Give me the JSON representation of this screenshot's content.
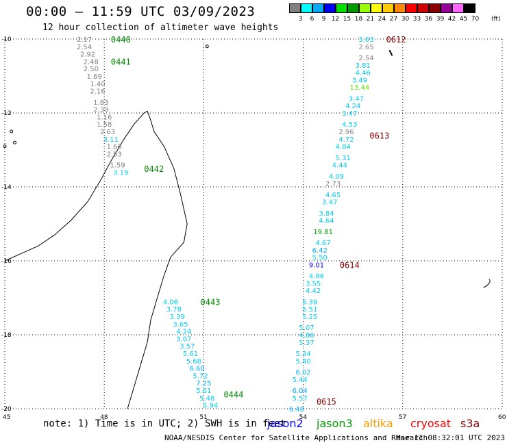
{
  "title": "00:00 – 11:59 UTC 03/09/2023",
  "subtitle": "12 hour collection of altimeter wave heights",
  "legend": {
    "unit": "(ft)",
    "bins": [
      {
        "label": "3",
        "color": "#808080"
      },
      {
        "label": "6",
        "color": "#00ffff"
      },
      {
        "label": "9",
        "color": "#00aaff"
      },
      {
        "label": "12",
        "color": "#0000ff"
      },
      {
        "label": "15",
        "color": "#00dd00"
      },
      {
        "label": "18",
        "color": "#009900"
      },
      {
        "label": "21",
        "color": "#99ff00"
      },
      {
        "label": "24",
        "color": "#ffff00"
      },
      {
        "label": "27",
        "color": "#ffcc00"
      },
      {
        "label": "30",
        "color": "#ff8800"
      },
      {
        "label": "33",
        "color": "#ff0000"
      },
      {
        "label": "36",
        "color": "#cc0000"
      },
      {
        "label": "39",
        "color": "#880000"
      },
      {
        "label": "42",
        "color": "#990099"
      },
      {
        "label": "45",
        "color": "#ff66ff"
      },
      {
        "label": "70",
        "color": "#000000"
      }
    ]
  },
  "map": {
    "lon_range": [
      45,
      60
    ],
    "lat_range": [
      -20,
      -10
    ],
    "x_ticks": [
      "45",
      "48",
      "51",
      "54",
      "57",
      "60"
    ],
    "y_ticks": [
      "-10",
      "-12",
      "-14",
      "-16",
      "-18",
      "-20"
    ],
    "grid": true
  },
  "tracks": [
    {
      "lon": 47.4,
      "lat": -10.0,
      "value": "2.17",
      "color": "#808080"
    },
    {
      "lon": 47.4,
      "lat": -10.2,
      "value": "2.54",
      "color": "#808080"
    },
    {
      "lon": 47.5,
      "lat": -10.4,
      "value": "2.92",
      "color": "#808080"
    },
    {
      "lon": 47.6,
      "lat": -10.6,
      "value": "2.48",
      "color": "#808080"
    },
    {
      "lon": 47.6,
      "lat": -10.8,
      "value": "2.50",
      "color": "#808080"
    },
    {
      "lon": 47.7,
      "lat": -11.0,
      "value": "1.69",
      "color": "#808080"
    },
    {
      "lon": 47.8,
      "lat": -11.2,
      "value": "1.40",
      "color": "#808080"
    },
    {
      "lon": 47.8,
      "lat": -11.4,
      "value": "2.16",
      "color": "#808080"
    },
    {
      "lon": 47.9,
      "lat": -11.7,
      "value": "1.83",
      "color": "#808080"
    },
    {
      "lon": 47.9,
      "lat": -11.9,
      "value": "2.39",
      "color": "#808080"
    },
    {
      "lon": 48.0,
      "lat": -12.1,
      "value": "1.16",
      "color": "#808080"
    },
    {
      "lon": 48.0,
      "lat": -12.3,
      "value": "1.58",
      "color": "#808080"
    },
    {
      "lon": 48.1,
      "lat": -12.5,
      "value": "2.63",
      "color": "#808080"
    },
    {
      "lon": 48.2,
      "lat": -12.7,
      "value": "3.11",
      "color": "#00ccee"
    },
    {
      "lon": 48.3,
      "lat": -12.9,
      "value": "1.66",
      "color": "#808080"
    },
    {
      "lon": 48.3,
      "lat": -13.1,
      "value": "2.53",
      "color": "#808080"
    },
    {
      "lon": 48.4,
      "lat": -13.4,
      "value": "1.59",
      "color": "#808080"
    },
    {
      "lon": 48.5,
      "lat": -13.6,
      "value": "3.19",
      "color": "#00ccee"
    },
    {
      "lon": 55.9,
      "lat": -10.0,
      "value": "3.03",
      "color": "#00ccee"
    },
    {
      "lon": 55.9,
      "lat": -10.2,
      "value": "2.65",
      "color": "#808080"
    },
    {
      "lon": 55.9,
      "lat": -10.5,
      "value": "2.54",
      "color": "#808080"
    },
    {
      "lon": 55.8,
      "lat": -10.7,
      "value": "3.81",
      "color": "#00ccee"
    },
    {
      "lon": 55.8,
      "lat": -10.9,
      "value": "4.46",
      "color": "#00ccee"
    },
    {
      "lon": 55.7,
      "lat": -11.1,
      "value": "3.49",
      "color": "#00ccee"
    },
    {
      "lon": 55.7,
      "lat": -11.3,
      "value": "13.44",
      "color": "#66dd00"
    },
    {
      "lon": 55.6,
      "lat": -11.6,
      "value": "3.47",
      "color": "#00ccee"
    },
    {
      "lon": 55.5,
      "lat": -11.8,
      "value": "4.24",
      "color": "#00ccee"
    },
    {
      "lon": 55.4,
      "lat": -12.0,
      "value": "3.47",
      "color": "#00ccee"
    },
    {
      "lon": 55.4,
      "lat": -12.3,
      "value": "4.53",
      "color": "#00ccee"
    },
    {
      "lon": 55.3,
      "lat": -12.5,
      "value": "2.96",
      "color": "#808080"
    },
    {
      "lon": 55.3,
      "lat": -12.7,
      "value": "4.72",
      "color": "#00ccee"
    },
    {
      "lon": 55.2,
      "lat": -12.9,
      "value": "4.84",
      "color": "#00ccee"
    },
    {
      "lon": 55.2,
      "lat": -13.2,
      "value": "5.31",
      "color": "#00ccee"
    },
    {
      "lon": 55.1,
      "lat": -13.4,
      "value": "4.44",
      "color": "#00ccee"
    },
    {
      "lon": 55.0,
      "lat": -13.7,
      "value": "4.09",
      "color": "#00ccee"
    },
    {
      "lon": 54.9,
      "lat": -13.9,
      "value": "2.73",
      "color": "#808080"
    },
    {
      "lon": 54.9,
      "lat": -14.2,
      "value": "4.65",
      "color": "#00ccee"
    },
    {
      "lon": 54.8,
      "lat": -14.4,
      "value": "3.47",
      "color": "#00ccee"
    },
    {
      "lon": 54.7,
      "lat": -14.7,
      "value": "3.84",
      "color": "#00ccee"
    },
    {
      "lon": 54.7,
      "lat": -14.9,
      "value": "4.64",
      "color": "#00ccee"
    },
    {
      "lon": 54.6,
      "lat": -15.2,
      "value": "19.81",
      "color": "#009900"
    },
    {
      "lon": 54.6,
      "lat": -15.5,
      "value": "4.67",
      "color": "#00ccee"
    },
    {
      "lon": 54.5,
      "lat": -15.7,
      "value": "6.42",
      "color": "#00aaff"
    },
    {
      "lon": 54.5,
      "lat": -15.9,
      "value": "5.50",
      "color": "#00ccee"
    },
    {
      "lon": 54.4,
      "lat": -16.1,
      "value": "9.01",
      "color": "#0000ff"
    },
    {
      "lon": 54.4,
      "lat": -16.4,
      "value": "4.96",
      "color": "#00ccee"
    },
    {
      "lon": 54.3,
      "lat": -16.6,
      "value": "3.55",
      "color": "#00ccee"
    },
    {
      "lon": 54.3,
      "lat": -16.8,
      "value": "4.42",
      "color": "#00ccee"
    },
    {
      "lon": 54.2,
      "lat": -17.1,
      "value": "5.39",
      "color": "#00ccee"
    },
    {
      "lon": 54.2,
      "lat": -17.3,
      "value": "5.51",
      "color": "#00ccee"
    },
    {
      "lon": 54.2,
      "lat": -17.5,
      "value": "5.25",
      "color": "#00ccee"
    },
    {
      "lon": 54.1,
      "lat": -17.8,
      "value": "5.07",
      "color": "#00ccee"
    },
    {
      "lon": 54.1,
      "lat": -18.0,
      "value": "4.86",
      "color": "#00ccee"
    },
    {
      "lon": 54.1,
      "lat": -18.2,
      "value": "5.37",
      "color": "#00ccee"
    },
    {
      "lon": 54.0,
      "lat": -18.5,
      "value": "5.34",
      "color": "#00ccee"
    },
    {
      "lon": 54.0,
      "lat": -18.7,
      "value": "5.40",
      "color": "#00ccee"
    },
    {
      "lon": 54.0,
      "lat": -19.0,
      "value": "6.02",
      "color": "#00aaff"
    },
    {
      "lon": 53.9,
      "lat": -19.2,
      "value": "5.44",
      "color": "#00ccee"
    },
    {
      "lon": 53.9,
      "lat": -19.5,
      "value": "6.04",
      "color": "#00aaff"
    },
    {
      "lon": 53.9,
      "lat": -19.7,
      "value": "5.57",
      "color": "#00ccee"
    },
    {
      "lon": 53.8,
      "lat": -20.0,
      "value": "6.48",
      "color": "#00aaff"
    },
    {
      "lon": 50.0,
      "lat": -17.1,
      "value": "4.06",
      "color": "#00ccee"
    },
    {
      "lon": 50.1,
      "lat": -17.3,
      "value": "3.78",
      "color": "#00ccee"
    },
    {
      "lon": 50.2,
      "lat": -17.5,
      "value": "3.39",
      "color": "#00ccee"
    },
    {
      "lon": 50.3,
      "lat": -17.7,
      "value": "3.65",
      "color": "#00ccee"
    },
    {
      "lon": 50.4,
      "lat": -17.9,
      "value": "4.24",
      "color": "#00ccee"
    },
    {
      "lon": 50.4,
      "lat": -18.1,
      "value": "3.07",
      "color": "#00ccee"
    },
    {
      "lon": 50.5,
      "lat": -18.3,
      "value": "3.57",
      "color": "#00ccee"
    },
    {
      "lon": 50.6,
      "lat": -18.5,
      "value": "5.61",
      "color": "#00ccee"
    },
    {
      "lon": 50.7,
      "lat": -18.7,
      "value": "5.68",
      "color": "#00ccee"
    },
    {
      "lon": 50.8,
      "lat": -18.9,
      "value": "6.60",
      "color": "#00aaff"
    },
    {
      "lon": 50.9,
      "lat": -19.1,
      "value": "5.72",
      "color": "#00ccee"
    },
    {
      "lon": 51.0,
      "lat": -19.3,
      "value": "7.25",
      "color": "#00aaff"
    },
    {
      "lon": 51.0,
      "lat": -19.5,
      "value": "5.61",
      "color": "#00ccee"
    },
    {
      "lon": 51.1,
      "lat": -19.7,
      "value": "5.48",
      "color": "#00ccee"
    },
    {
      "lon": 51.2,
      "lat": -19.9,
      "value": "5.94",
      "color": "#00ccee"
    }
  ],
  "time_labels": [
    {
      "lon": 48.2,
      "lat": -10.0,
      "text": "0440",
      "color": "#008800"
    },
    {
      "lon": 48.2,
      "lat": -10.6,
      "text": "0441",
      "color": "#008800"
    },
    {
      "lon": 49.2,
      "lat": -13.5,
      "text": "0442",
      "color": "#008800"
    },
    {
      "lon": 50.9,
      "lat": -17.1,
      "text": "0443",
      "color": "#008800"
    },
    {
      "lon": 51.6,
      "lat": -19.6,
      "text": "0444",
      "color": "#008800"
    },
    {
      "lon": 56.5,
      "lat": -10.0,
      "text": "0612",
      "color": "#880000"
    },
    {
      "lon": 56.0,
      "lat": -12.6,
      "text": "0613",
      "color": "#880000"
    },
    {
      "lon": 55.1,
      "lat": -16.1,
      "text": "0614",
      "color": "#880000"
    },
    {
      "lon": 54.4,
      "lat": -19.8,
      "text": "0615",
      "color": "#880000"
    }
  ],
  "note": "note: 1) Time is in UTC; 2) SWH is in feet",
  "satellites": [
    {
      "name": "jason2",
      "color": "#0000ff"
    },
    {
      "name": "jason3",
      "color": "#009900"
    },
    {
      "name": "altika",
      "color": "#ff9900"
    },
    {
      "name": "cryosat",
      "color": "#ff0000"
    },
    {
      "name": "s3a",
      "color": "#880000"
    }
  ],
  "footer": "NOAA/NESDIS Center for Satellite Applications and Research",
  "generated": "Mar 11 08:32:01 UTC 2023"
}
